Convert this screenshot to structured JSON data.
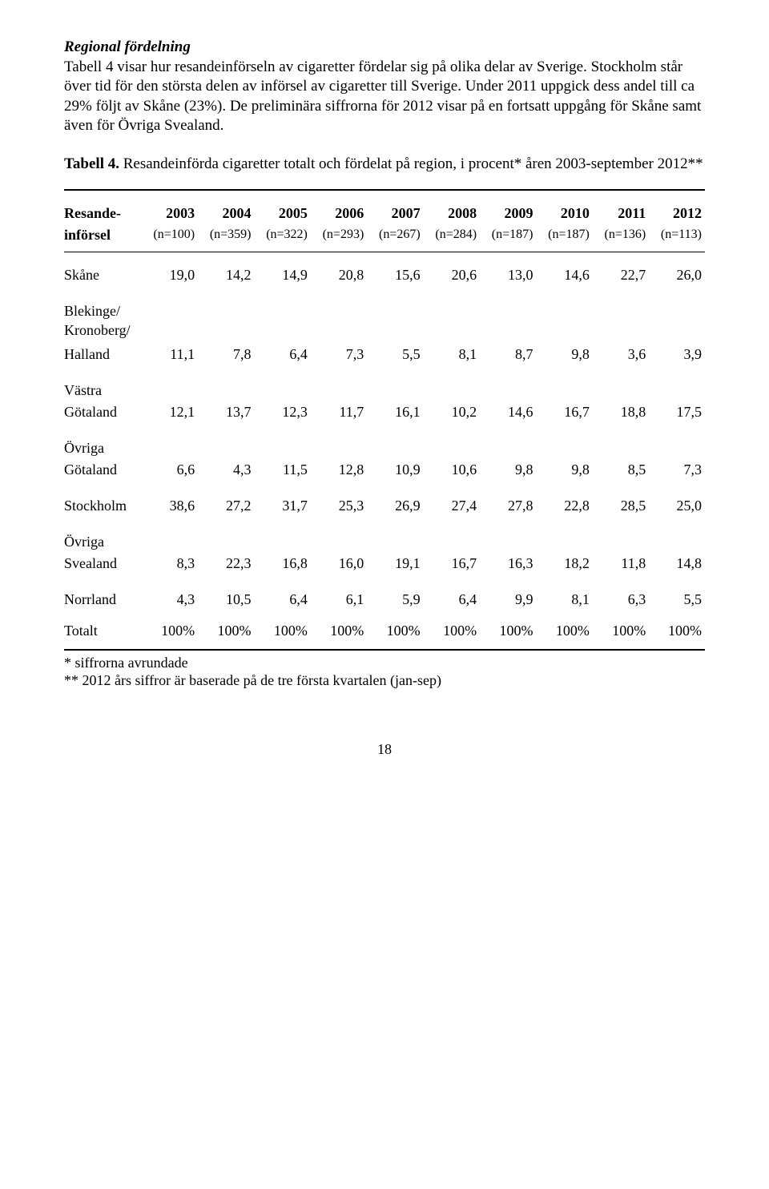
{
  "heading": "Regional fördelning",
  "intro": "Tabell 4 visar hur resandeinförseln av cigaretter fördelar sig på olika delar av Sverige. Stockholm står över tid för den största delen av införsel av cigaretter till Sverige. Under 2011 uppgick dess andel till ca 29% följt av Skåne (23%). De preliminära siffrorna för 2012 visar på en fortsatt uppgång för Skåne samt även för Övriga Svealand.",
  "tableTitle_prefix": "Tabell 4.",
  "tableTitle_rest": " Resandeinförda cigaretter totalt och fördelat på region, i procent* åren 2003-september 2012**",
  "header1_label": "Resande-",
  "header2_label": "införsel",
  "years": [
    "2003",
    "2004",
    "2005",
    "2006",
    "2007",
    "2008",
    "2009",
    "2010",
    "2011",
    "2012"
  ],
  "ns": [
    "(n=100)",
    "(n=359)",
    "(n=322)",
    "(n=293)",
    "(n=267)",
    "(n=284)",
    "(n=187)",
    "(n=187)",
    "(n=136)",
    "(n=113)"
  ],
  "rows": [
    {
      "label": "Skåne",
      "vals": [
        "19,0",
        "14,2",
        "14,9",
        "20,8",
        "15,6",
        "20,6",
        "13,0",
        "14,6",
        "22,7",
        "26,0"
      ]
    },
    {
      "multi": [
        "Blekinge/",
        "Kronoberg/",
        "Halland"
      ],
      "vals": [
        "11,1",
        "7,8",
        "6,4",
        "7,3",
        "5,5",
        "8,1",
        "8,7",
        "9,8",
        "3,6",
        "3,9"
      ]
    },
    {
      "multi": [
        "Västra",
        "Götaland"
      ],
      "vals": [
        "12,1",
        "13,7",
        "12,3",
        "11,7",
        "16,1",
        "10,2",
        "14,6",
        "16,7",
        "18,8",
        "17,5"
      ]
    },
    {
      "multi": [
        "Övriga",
        "Götaland"
      ],
      "vals": [
        "6,6",
        "4,3",
        "11,5",
        "12,8",
        "10,9",
        "10,6",
        "9,8",
        "9,8",
        "8,5",
        "7,3"
      ]
    },
    {
      "label": "Stockholm",
      "vals": [
        "38,6",
        "27,2",
        "31,7",
        "25,3",
        "26,9",
        "27,4",
        "27,8",
        "22,8",
        "28,5",
        "25,0"
      ]
    },
    {
      "multi": [
        "Övriga",
        "Svealand"
      ],
      "vals": [
        "8,3",
        "22,3",
        "16,8",
        "16,0",
        "19,1",
        "16,7",
        "16,3",
        "18,2",
        "11,8",
        "14,8"
      ]
    },
    {
      "label": "Norrland",
      "vals": [
        "4,3",
        "10,5",
        "6,4",
        "6,1",
        "5,9",
        "6,4",
        "9,9",
        "8,1",
        "6,3",
        "5,5"
      ]
    }
  ],
  "total": {
    "label": "Totalt",
    "vals": [
      "100%",
      "100%",
      "100%",
      "100%",
      "100%",
      "100%",
      "100%",
      "100%",
      "100%",
      "100%"
    ]
  },
  "footnote1": "* siffrorna avrundade",
  "footnote2": " ** 2012 års siffror är baserade på de tre första kvartalen (jan-sep)",
  "pageNumber": "18"
}
